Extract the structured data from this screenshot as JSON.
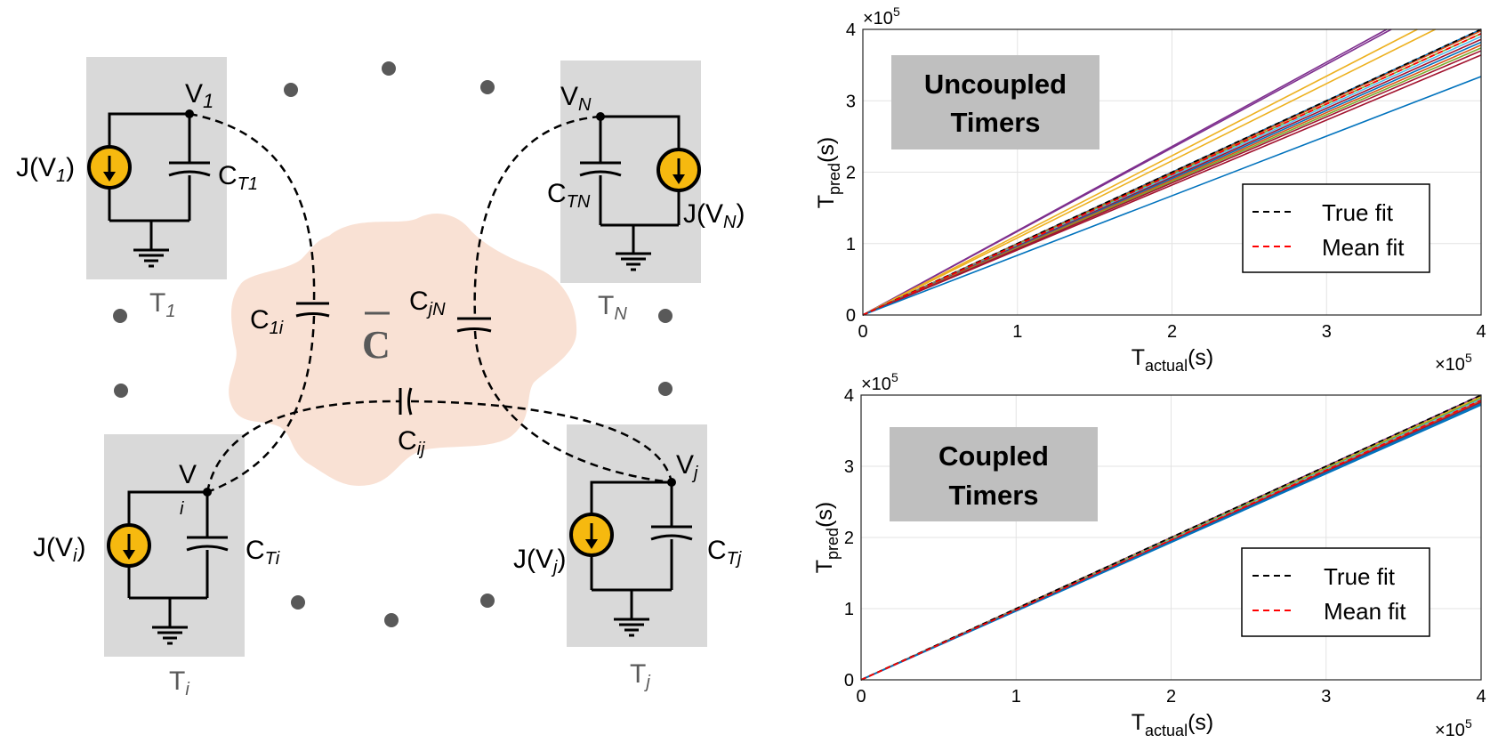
{
  "circuit": {
    "timers": [
      {
        "id": "t1",
        "node_label": "V",
        "node_sub": "1",
        "source_label": "J(V",
        "source_sub": "1",
        "source_close": ")",
        "cap_label": "C",
        "cap_sub": "T1",
        "timer_label": "T",
        "timer_sub": "1"
      },
      {
        "id": "tn",
        "node_label": "V",
        "node_sub": "N",
        "source_label": "J(V",
        "source_sub": "N",
        "source_close": ")",
        "cap_label": "C",
        "cap_sub": "TN",
        "timer_label": "T",
        "timer_sub": "N"
      },
      {
        "id": "ti",
        "node_label": "V",
        "node_sub": "i",
        "source_label": "J(V",
        "source_sub": "i",
        "source_close": ")",
        "cap_label": "C",
        "cap_sub": "Ti",
        "timer_label": "T",
        "timer_sub": "i"
      },
      {
        "id": "tj",
        "node_label": "V",
        "node_sub": "j",
        "source_label": "J(V",
        "source_sub": "j",
        "source_close": ")",
        "cap_label": "C",
        "cap_sub": "Tj",
        "timer_label": "T",
        "timer_sub": "j"
      }
    ],
    "coupling": {
      "matrix_symbol": "C",
      "c1i": {
        "main": "C",
        "sub": "1i"
      },
      "cjn": {
        "main": "C",
        "sub": "jN"
      },
      "cij": {
        "main": "C",
        "sub": "ij"
      }
    },
    "colors": {
      "cloud": "#f9e1d4",
      "box": "#d9d9d9",
      "source": "#f6b90f",
      "wire": "#000000",
      "dots": "#595959"
    }
  },
  "chart_data": [
    {
      "type": "line",
      "title": "Uncoupled Timers",
      "xlabel": {
        "main": "T",
        "sub": "actual",
        "unit": "(s)"
      },
      "ylabel": {
        "main": "T",
        "sub": "pred",
        "unit": "(s)"
      },
      "exponent": "×10",
      "exponent_power": "5",
      "xlim": [
        0,
        400000
      ],
      "ylim": [
        0,
        400000
      ],
      "xticks": [
        "0",
        "1",
        "2",
        "3",
        "4"
      ],
      "yticks": [
        "0",
        "1",
        "2",
        "3",
        "4"
      ],
      "grid": true,
      "legend": {
        "placement": "bottom-right",
        "entries": [
          {
            "label": "True fit",
            "color": "#000000"
          },
          {
            "label": "Mean fit",
            "color": "#ff0000"
          }
        ]
      },
      "slopes": [
        1.18,
        1.17,
        1.115,
        1.08,
        1.0,
        0.995,
        0.985,
        0.975,
        0.965,
        0.955,
        0.945,
        0.935,
        0.925,
        0.91,
        0.835
      ],
      "slope_colors": [
        "#7e2f8e",
        "#7e2f8e",
        "#edb120",
        "#edb120",
        "#0072bd",
        "#d95319",
        "#77ac30",
        "#4dbeee",
        "#a2142f",
        "#0072bd",
        "#d95319",
        "#77ac30",
        "#a2142f",
        "#a2142f",
        "#0072bd"
      ],
      "true_fit_slope": 1.0,
      "mean_fit_slope": 0.985
    },
    {
      "type": "line",
      "title": "Coupled Timers",
      "xlabel": {
        "main": "T",
        "sub": "actual",
        "unit": "(s)"
      },
      "ylabel": {
        "main": "T",
        "sub": "pred",
        "unit": "(s)"
      },
      "exponent": "×10",
      "exponent_power": "5",
      "xlim": [
        0,
        400000
      ],
      "ylim": [
        0,
        400000
      ],
      "xticks": [
        "0",
        "1",
        "2",
        "3",
        "4"
      ],
      "yticks": [
        "0",
        "1",
        "2",
        "3",
        "4"
      ],
      "grid": true,
      "legend": {
        "placement": "bottom-right",
        "entries": [
          {
            "label": "True fit",
            "color": "#000000"
          },
          {
            "label": "Mean fit",
            "color": "#ff0000"
          }
        ]
      },
      "slopes": [
        1.0,
        0.995,
        0.99,
        0.985,
        0.98,
        0.975,
        0.97,
        0.965
      ],
      "slope_colors": [
        "#7e2f8e",
        "#edb120",
        "#77ac30",
        "#4dbeee",
        "#d95319",
        "#a2142f",
        "#0072bd",
        "#0072bd"
      ],
      "true_fit_slope": 1.0,
      "mean_fit_slope": 0.982
    }
  ]
}
